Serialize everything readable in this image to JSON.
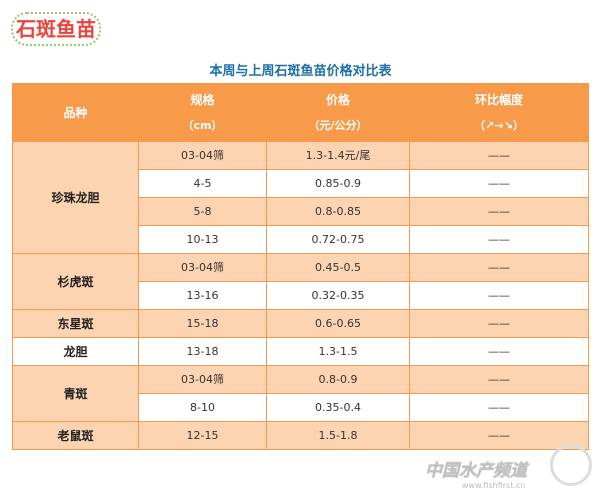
{
  "badge": "石斑鱼苗",
  "title": "本周与上周石斑鱼苗价格对比表",
  "headers": {
    "variety": "品种",
    "spec": "规格",
    "spec_unit": "（cm）",
    "price": "价格",
    "price_unit": "（元/公分）",
    "change": "环比幅度",
    "change_unit": "（↗→↘）"
  },
  "rows": [
    {
      "variety": "珍珠龙胆",
      "spec": "03-04筛",
      "price": "1.3-1.4元/尾",
      "change": "——"
    },
    {
      "spec": "4-5",
      "price": "0.85-0.9",
      "change": "——"
    },
    {
      "spec": "5-8",
      "price": "0.8-0.85",
      "change": "——"
    },
    {
      "spec": "10-13",
      "price": "0.72-0.75",
      "change": "——"
    },
    {
      "variety": "杉虎斑",
      "spec": "03-04筛",
      "price": "0.45-0.5",
      "change": "——"
    },
    {
      "spec": "13-16",
      "price": "0.32-0.35",
      "change": "——"
    },
    {
      "variety": "东星斑",
      "spec": "15-18",
      "price": "0.6-0.65",
      "change": "——"
    },
    {
      "variety": "龙胆",
      "spec": "13-18",
      "price": "1.3-1.5",
      "change": "——"
    },
    {
      "variety": "青斑",
      "spec": "03-04筛",
      "price": "0.8-0.9",
      "change": "——"
    },
    {
      "spec": "8-10",
      "price": "0.35-0.4",
      "change": "——"
    },
    {
      "variety": "老鼠斑",
      "spec": "12-15",
      "price": "1.5-1.8",
      "change": "——"
    }
  ],
  "watermark": {
    "text": "中国水产频道",
    "url": "www.fishfirst.cn"
  },
  "colors": {
    "header": "#f79a4a",
    "row_alt": "#fdd4b2",
    "title": "#1a6fa8",
    "badge": "#e8453c"
  }
}
